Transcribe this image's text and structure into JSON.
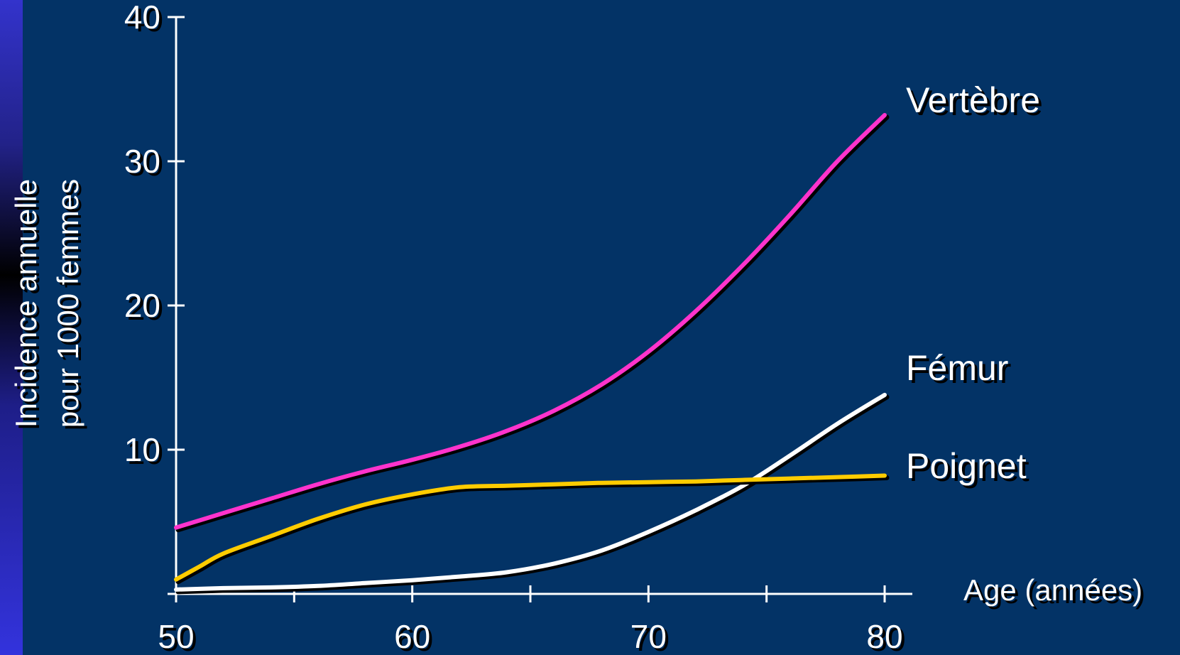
{
  "chart_data": {
    "type": "line",
    "title": "",
    "xlabel": "Age (années)",
    "ylabel_lines": [
      "Incidence annuelle",
      "pour 1000 femmes"
    ],
    "xlim": [
      50,
      80
    ],
    "ylim": [
      0,
      40
    ],
    "x_ticks": [
      50,
      55,
      60,
      65,
      70,
      75,
      80
    ],
    "x_tick_labels": [
      {
        "x": 50,
        "label": "50"
      },
      {
        "x": 60,
        "label": "60"
      },
      {
        "x": 70,
        "label": "70"
      },
      {
        "x": 80,
        "label": "80"
      }
    ],
    "y_ticks": [
      0,
      10,
      20,
      30,
      40
    ],
    "y_tick_labels": [
      {
        "y": 10,
        "label": "10"
      },
      {
        "y": 20,
        "label": "20"
      },
      {
        "y": 30,
        "label": "30"
      },
      {
        "y": 40,
        "label": "40"
      }
    ],
    "grid": false,
    "legend": "labels at line ends (right)",
    "series": [
      {
        "name": "Vertèbre",
        "color": "#ff33cc",
        "points": [
          [
            50,
            4.6
          ],
          [
            52,
            5.6
          ],
          [
            54,
            6.6
          ],
          [
            56,
            7.6
          ],
          [
            58,
            8.5
          ],
          [
            60,
            9.3
          ],
          [
            62,
            10.2
          ],
          [
            64,
            11.3
          ],
          [
            66,
            12.7
          ],
          [
            68,
            14.5
          ],
          [
            70,
            16.8
          ],
          [
            72,
            19.6
          ],
          [
            74,
            22.8
          ],
          [
            76,
            26.3
          ],
          [
            78,
            30.0
          ],
          [
            80,
            33.2
          ]
        ]
      },
      {
        "name": "Fémur",
        "color": "#ffffff",
        "points": [
          [
            50,
            0.3
          ],
          [
            52,
            0.4
          ],
          [
            54,
            0.45
          ],
          [
            56,
            0.55
          ],
          [
            58,
            0.75
          ],
          [
            60,
            0.95
          ],
          [
            62,
            1.2
          ],
          [
            64,
            1.5
          ],
          [
            66,
            2.1
          ],
          [
            68,
            3.0
          ],
          [
            70,
            4.3
          ],
          [
            72,
            5.8
          ],
          [
            74,
            7.5
          ],
          [
            76,
            9.6
          ],
          [
            78,
            11.8
          ],
          [
            80,
            13.8
          ]
        ]
      },
      {
        "name": "Poignet",
        "color": "#ffcc00",
        "points": [
          [
            50,
            1.0
          ],
          [
            51,
            1.9
          ],
          [
            52,
            2.8
          ],
          [
            54,
            4.0
          ],
          [
            56,
            5.2
          ],
          [
            58,
            6.2
          ],
          [
            60,
            6.9
          ],
          [
            62,
            7.4
          ],
          [
            64,
            7.5
          ],
          [
            66,
            7.6
          ],
          [
            68,
            7.7
          ],
          [
            70,
            7.75
          ],
          [
            72,
            7.8
          ],
          [
            74,
            7.9
          ],
          [
            76,
            8.0
          ],
          [
            78,
            8.1
          ],
          [
            80,
            8.2
          ]
        ]
      }
    ]
  }
}
